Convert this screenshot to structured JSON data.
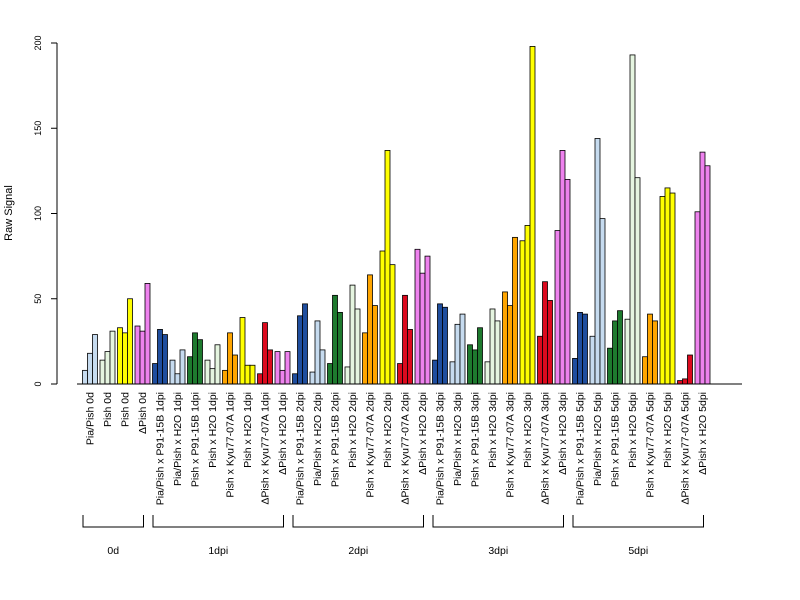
{
  "chart_data": {
    "type": "bar",
    "ylabel": "Raw Signal",
    "ylim": [
      0,
      200
    ],
    "yticks": [
      0,
      50,
      100,
      150,
      200
    ],
    "categories": [
      "Pia/Pish 0d",
      "Pish 0d",
      "Pish 0d",
      "ΔPish 0d",
      "Pia/Pish x P91-15B 1dpi",
      "Pia/Pish x H2O 1dpi",
      "Pish x P91-15B 1dpi",
      "Pish x H2O 1dpi",
      "Pish x Kyu77-07A 1dpi",
      "Pish x H2O 1dpi",
      "ΔPish x Kyu77-07A 1dpi",
      "ΔPish x H2O 1dpi",
      "Pia/Pish x P91-15B 2dpi",
      "Pia/Pish x H2O 2dpi",
      "Pish x P91-15B 2dpi",
      "Pish x H2O 2dpi",
      "Pish x Kyu77-07A 2dpi",
      "Pish x H2O 2dpi",
      "ΔPish x Kyu77-07A 2dpi",
      "ΔPish x H2O 2dpi",
      "Pia/Pish x P91-15B 3dpi",
      "Pia/Pish x H2O 3dpi",
      "Pish x P91-15B 3dpi",
      "Pish x H2O 3dpi",
      "Pish x Kyu77-07A 3dpi",
      "Pish x H2O 3dpi",
      "ΔPish x Kyu77-07A 3dpi",
      "ΔPish x H2O 3dpi",
      "Pia/Pish x P91-15B 5dpi",
      "Pia/Pish x H2O 5dpi",
      "Pish x P91-15B 5dpi",
      "Pish x H2O 5dpi",
      "Pish x Kyu77-07A 5dpi",
      "Pish x H2O 5dpi",
      "ΔPish x Kyu77-07A 5dpi",
      "ΔPish x H2O 5dpi"
    ],
    "colors": [
      "#c6dbef",
      "#e5f5e0",
      "#ffff00",
      "#ee82ee",
      "#1f4e9e",
      "#c6dbef",
      "#1e7a2e",
      "#e5f5e0",
      "#ffa500",
      "#ffff00",
      "#dc0a1e",
      "#ee82ee",
      "#1f4e9e",
      "#c6dbef",
      "#1e7a2e",
      "#e5f5e0",
      "#ffa500",
      "#ffff00",
      "#dc0a1e",
      "#ee82ee",
      "#1f4e9e",
      "#c6dbef",
      "#1e7a2e",
      "#e5f5e0",
      "#ffa500",
      "#ffff00",
      "#dc0a1e",
      "#ee82ee",
      "#1f4e9e",
      "#c6dbef",
      "#1e7a2e",
      "#e5f5e0",
      "#ffa500",
      "#ffff00",
      "#dc0a1e",
      "#ee82ee"
    ],
    "values": [
      [
        8,
        18,
        29
      ],
      [
        14,
        19,
        31
      ],
      [
        33,
        30,
        50
      ],
      [
        34,
        31,
        59
      ],
      [
        12,
        32,
        29
      ],
      [
        14,
        6,
        20
      ],
      [
        16,
        30,
        26
      ],
      [
        14,
        9,
        23
      ],
      [
        8,
        30,
        17
      ],
      [
        39,
        11,
        11
      ],
      [
        6,
        36,
        20
      ],
      [
        19,
        8,
        19
      ],
      [
        6,
        40,
        47
      ],
      [
        7,
        37,
        20
      ],
      [
        12,
        52,
        42
      ],
      [
        10,
        58,
        44
      ],
      [
        30,
        64,
        46
      ],
      [
        78,
        137,
        70
      ],
      [
        12,
        52,
        32
      ],
      [
        79,
        65,
        75
      ],
      [
        14,
        47,
        45
      ],
      [
        13,
        35,
        41
      ],
      [
        23,
        20,
        33
      ],
      [
        13,
        44,
        37
      ],
      [
        54,
        46,
        86
      ],
      [
        84,
        93,
        198
      ],
      [
        28,
        60,
        49
      ],
      [
        90,
        137,
        120
      ],
      [
        15,
        42,
        41
      ],
      [
        28,
        144,
        97
      ],
      [
        21,
        37,
        43
      ],
      [
        38,
        193,
        121
      ],
      [
        16,
        41,
        37
      ],
      [
        110,
        115,
        112
      ],
      [
        2,
        3,
        17
      ],
      [
        101,
        136,
        128
      ]
    ],
    "groups": [
      {
        "label": "0d",
        "start": 0,
        "end": 3
      },
      {
        "label": "1dpi",
        "start": 4,
        "end": 11
      },
      {
        "label": "2dpi",
        "start": 12,
        "end": 19
      },
      {
        "label": "3dpi",
        "start": 20,
        "end": 27
      },
      {
        "label": "5dpi",
        "start": 28,
        "end": 35
      }
    ],
    "grid": false,
    "legend": "none"
  }
}
